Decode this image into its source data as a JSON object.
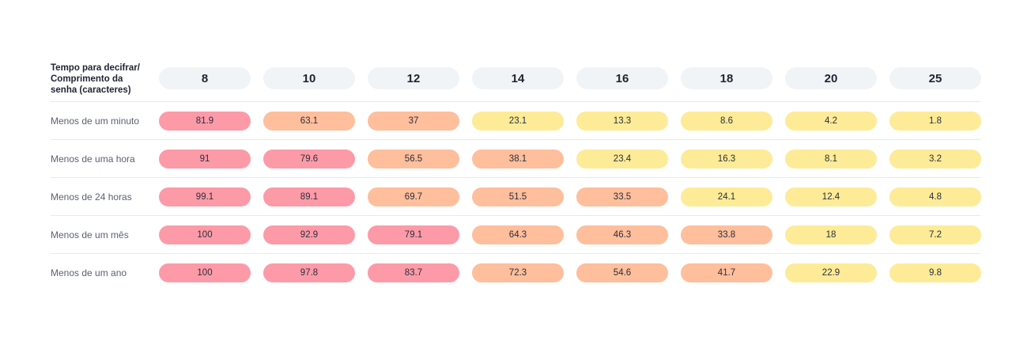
{
  "chart_data": {
    "type": "table",
    "title": "",
    "corner_label": "Tempo para decifrar/\nComprimento da\nsenha (caracteres)",
    "columns": [
      "8",
      "10",
      "12",
      "14",
      "16",
      "18",
      "20",
      "25"
    ],
    "rows": [
      {
        "label": "Menos de um minuto",
        "values": [
          "81.9",
          "63.1",
          "37",
          "23.1",
          "13.3",
          "8.6",
          "4.2",
          "1.8"
        ]
      },
      {
        "label": "Menos de uma hora",
        "values": [
          "91",
          "79.6",
          "56.5",
          "38.1",
          "23.4",
          "16.3",
          "8.1",
          "3.2"
        ]
      },
      {
        "label": "Menos de 24 horas",
        "values": [
          "99.1",
          "89.1",
          "69.7",
          "51.5",
          "33.5",
          "24.1",
          "12.4",
          "4.8"
        ]
      },
      {
        "label": "Menos de um mês",
        "values": [
          "100",
          "92.9",
          "79.1",
          "64.3",
          "46.3",
          "33.8",
          "18",
          "7.2"
        ]
      },
      {
        "label": "Menos de um ano",
        "values": [
          "100",
          "97.8",
          "83.7",
          "72.3",
          "54.6",
          "41.7",
          "22.9",
          "9.8"
        ]
      }
    ],
    "colors": {
      "high": "#fd9aa8",
      "medium": "#ffbe9c",
      "low": "#fdeb97",
      "header_pill": "#f1f4f7"
    }
  }
}
